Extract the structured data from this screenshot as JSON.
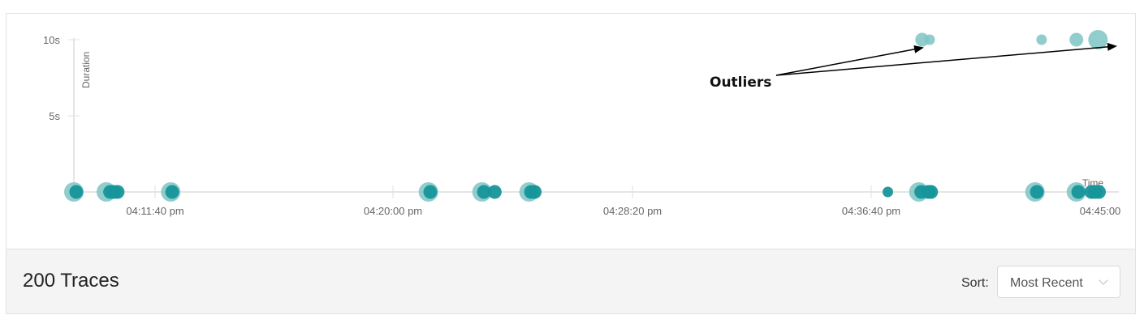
{
  "chart_data": {
    "type": "scatter",
    "y_axis": {
      "title": "Duration",
      "ticks": [
        {
          "value": 5,
          "label": "5s"
        },
        {
          "value": 10,
          "label": "10s"
        }
      ],
      "range": [
        0,
        10
      ]
    },
    "x_axis": {
      "title": "Time",
      "range_seconds": [
        0,
        1130
      ],
      "ticks": [
        {
          "value": 200,
          "label": "04:11:40 pm"
        },
        {
          "value": 700,
          "label": "04:20:00 pm"
        },
        {
          "value": 1200,
          "label": "04:28:20 pm"
        },
        {
          "value": 1700,
          "label": "04:36:40 pm"
        },
        {
          "value": 2200,
          "label": "04:45:00"
        }
      ],
      "domain": [
        23,
        2228
      ]
    },
    "colors": {
      "light": "#7fc4c6",
      "dark": "#16959a"
    },
    "points": [
      {
        "t": 23,
        "d": 0,
        "size": "large",
        "tone": "light"
      },
      {
        "t": 28,
        "d": 0,
        "size": "medium",
        "tone": "dark"
      },
      {
        "t": 92,
        "d": 0,
        "size": "large",
        "tone": "light"
      },
      {
        "t": 100,
        "d": 0,
        "size": "medium",
        "tone": "dark"
      },
      {
        "t": 108,
        "d": 0,
        "size": "medium",
        "tone": "dark"
      },
      {
        "t": 116,
        "d": 0,
        "size": "medium",
        "tone": "dark"
      },
      {
        "t": 229,
        "d": 0,
        "size": "large",
        "tone": "light"
      },
      {
        "t": 232,
        "d": 0,
        "size": "medium",
        "tone": "dark"
      },
      {
        "t": 777,
        "d": 0,
        "size": "large",
        "tone": "light"
      },
      {
        "t": 781,
        "d": 0,
        "size": "medium",
        "tone": "dark"
      },
      {
        "t": 891,
        "d": 0,
        "size": "large",
        "tone": "light"
      },
      {
        "t": 895,
        "d": 0,
        "size": "medium",
        "tone": "dark"
      },
      {
        "t": 918,
        "d": 0,
        "size": "medium",
        "tone": "dark"
      },
      {
        "t": 991,
        "d": 0,
        "size": "large",
        "tone": "light"
      },
      {
        "t": 995,
        "d": 0,
        "size": "medium",
        "tone": "dark"
      },
      {
        "t": 1003,
        "d": 0,
        "size": "medium",
        "tone": "dark"
      },
      {
        "t": 1754,
        "d": 0,
        "size": "small",
        "tone": "dark"
      },
      {
        "t": 1820,
        "d": 0,
        "size": "large",
        "tone": "light"
      },
      {
        "t": 1825,
        "d": 0,
        "size": "medium",
        "tone": "dark"
      },
      {
        "t": 1840,
        "d": 0,
        "size": "medium",
        "tone": "dark"
      },
      {
        "t": 1846,
        "d": 0,
        "size": "medium",
        "tone": "dark"
      },
      {
        "t": 2067,
        "d": 0,
        "size": "large",
        "tone": "light"
      },
      {
        "t": 2071,
        "d": 0,
        "size": "medium",
        "tone": "dark"
      },
      {
        "t": 2155,
        "d": 0,
        "size": "large",
        "tone": "light"
      },
      {
        "t": 2159,
        "d": 0,
        "size": "medium",
        "tone": "dark"
      },
      {
        "t": 2187,
        "d": 0,
        "size": "medium",
        "tone": "dark"
      },
      {
        "t": 2195,
        "d": 0,
        "size": "medium",
        "tone": "dark"
      },
      {
        "t": 2203,
        "d": 0,
        "size": "medium",
        "tone": "dark"
      },
      {
        "t": 1827,
        "d": 10,
        "size": "medium",
        "tone": "light"
      },
      {
        "t": 1843,
        "d": 10,
        "size": "small",
        "tone": "light"
      },
      {
        "t": 2081,
        "d": 10,
        "size": "small",
        "tone": "light"
      },
      {
        "t": 2155,
        "d": 10,
        "size": "medium",
        "tone": "light"
      },
      {
        "t": 2201,
        "d": 10,
        "size": "large",
        "tone": "light"
      }
    ],
    "annotation": {
      "text": "Outliers"
    }
  },
  "footer": {
    "trace_count": "200 Traces",
    "sort_label": "Sort:",
    "sort_value": "Most Recent",
    "sort_chevron_icon": "chevron-down-icon"
  }
}
